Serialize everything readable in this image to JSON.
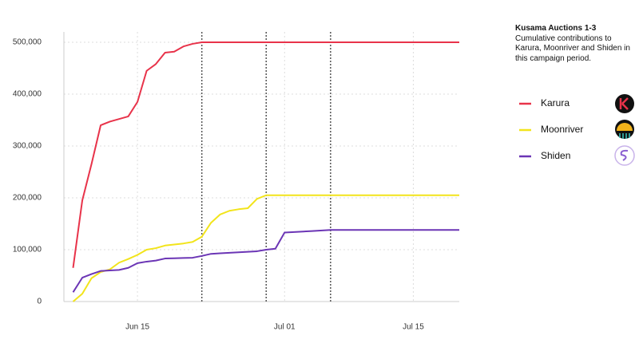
{
  "chart_data": {
    "type": "line",
    "title": "Kusama Auctions 1-3",
    "subtitle": "Cumulative contributions to Karura, Moonriver and Shiden in this campaign period.",
    "xlim": [
      "Jun 07",
      "Jul 20"
    ],
    "xticks": [
      "Jun 15",
      "Jul 01",
      "Jul 15"
    ],
    "ylim": [
      0,
      520000
    ],
    "yticks": [
      0,
      {
        "value": 100000,
        "label": "100,000"
      },
      {
        "value": 200000,
        "label": "200,000"
      },
      {
        "value": 300000,
        "label": "300,000"
      },
      {
        "value": 400000,
        "label": "400,000"
      },
      {
        "value": 500000,
        "label": "500,000"
      }
    ],
    "grid": true,
    "vlines": [
      "Jun 22",
      "Jun 29",
      "Jul 06"
    ],
    "legend": "right",
    "series": [
      {
        "name": "Karura",
        "color": "#e8334a",
        "x": [
          "Jun 08",
          "Jun 09",
          "Jun 10",
          "Jun 11",
          "Jun 12",
          "Jun 13",
          "Jun 14",
          "Jun 15",
          "Jun 16",
          "Jun 17",
          "Jun 18",
          "Jun 19",
          "Jun 20",
          "Jun 21",
          "Jun 22",
          "Jul 20"
        ],
        "values": [
          65000,
          195000,
          265000,
          340000,
          347000,
          352000,
          357000,
          385000,
          445000,
          458000,
          480000,
          482000,
          492000,
          497000,
          500000,
          500000
        ]
      },
      {
        "name": "Moonriver",
        "color": "#f2e41b",
        "x": [
          "Jun 08",
          "Jun 09",
          "Jun 10",
          "Jun 11",
          "Jun 12",
          "Jun 13",
          "Jun 14",
          "Jun 15",
          "Jun 16",
          "Jun 17",
          "Jun 18",
          "Jun 19",
          "Jun 20",
          "Jun 21",
          "Jun 22",
          "Jun 23",
          "Jun 24",
          "Jun 25",
          "Jun 26",
          "Jun 27",
          "Jun 28",
          "Jun 29",
          "Jul 20"
        ],
        "values": [
          0,
          15000,
          45000,
          57000,
          62000,
          75000,
          82000,
          90000,
          100000,
          103000,
          108000,
          110000,
          112000,
          115000,
          125000,
          152000,
          168000,
          175000,
          178000,
          180000,
          198000,
          205000,
          205000
        ]
      },
      {
        "name": "Shiden",
        "color": "#6b35b5",
        "x": [
          "Jun 08",
          "Jun 09",
          "Jun 10",
          "Jun 11",
          "Jun 12",
          "Jun 13",
          "Jun 14",
          "Jun 15",
          "Jun 16",
          "Jun 17",
          "Jun 18",
          "Jun 19",
          "Jun 20",
          "Jun 21",
          "Jun 22",
          "Jun 23",
          "Jun 24",
          "Jun 25",
          "Jun 26",
          "Jun 27",
          "Jun 28",
          "Jun 29",
          "Jun 30",
          "Jul 01",
          "Jul 04",
          "Jul 06",
          "Jul 20"
        ],
        "values": [
          18000,
          46000,
          53000,
          59000,
          60000,
          61000,
          65000,
          74000,
          77000,
          79000,
          83000,
          83500,
          84000,
          84500,
          88000,
          92000,
          93000,
          94000,
          95000,
          96000,
          97000,
          100000,
          102000,
          133000,
          136000,
          138000,
          138000
        ]
      }
    ]
  }
}
